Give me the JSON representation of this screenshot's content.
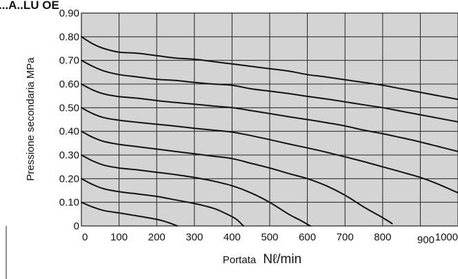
{
  "chart_data": {
    "type": "line",
    "title": "...A..LU OE",
    "ylabel": "Pressione secondaria  MPa",
    "xlabel": "Portata",
    "xunit": "Nℓ/min",
    "xlim": [
      0,
      1000
    ],
    "ylim": [
      0,
      0.9
    ],
    "grid": true,
    "x_ticks": [
      {
        "value": 0,
        "label": "0"
      },
      {
        "value": 100,
        "label": "100"
      },
      {
        "value": 200,
        "label": "200"
      },
      {
        "value": 300,
        "label": "300"
      },
      {
        "value": 400,
        "label": "400"
      },
      {
        "value": 500,
        "label": "500"
      },
      {
        "value": 600,
        "label": "600"
      },
      {
        "value": 700,
        "label": "700"
      },
      {
        "value": 800,
        "label": "800"
      },
      {
        "value": 900,
        "label": "900"
      },
      {
        "value": 1000,
        "label": "1000"
      }
    ],
    "y_ticks": [
      {
        "value": 0,
        "label": "0"
      },
      {
        "value": 0.1,
        "label": "0.10"
      },
      {
        "value": 0.2,
        "label": "0.20"
      },
      {
        "value": 0.3,
        "label": "0.30"
      },
      {
        "value": 0.4,
        "label": "0.40"
      },
      {
        "value": 0.5,
        "label": "0.50"
      },
      {
        "value": 0.6,
        "label": "0.60"
      },
      {
        "value": 0.7,
        "label": "0.70"
      },
      {
        "value": 0.8,
        "label": "0.80"
      },
      {
        "value": 0.9,
        "label": "0.90"
      }
    ],
    "series": [
      {
        "x": [
          0,
          30,
          60,
          100,
          150,
          200,
          250,
          300,
          350,
          400,
          450,
          500,
          550,
          600,
          650,
          700,
          750,
          800,
          850,
          900,
          950,
          1000
        ],
        "y": [
          0.8,
          0.77,
          0.75,
          0.735,
          0.73,
          0.72,
          0.71,
          0.705,
          0.695,
          0.685,
          0.675,
          0.665,
          0.655,
          0.64,
          0.63,
          0.618,
          0.607,
          0.595,
          0.58,
          0.565,
          0.55,
          0.535
        ]
      },
      {
        "x": [
          0,
          30,
          60,
          100,
          150,
          200,
          250,
          300,
          350,
          400,
          450,
          500,
          550,
          600,
          650,
          700,
          750,
          800,
          850,
          900,
          950,
          1000
        ],
        "y": [
          0.7,
          0.675,
          0.655,
          0.64,
          0.63,
          0.62,
          0.615,
          0.607,
          0.6,
          0.595,
          0.58,
          0.57,
          0.56,
          0.548,
          0.537,
          0.525,
          0.512,
          0.5,
          0.485,
          0.47,
          0.455,
          0.44
        ]
      },
      {
        "x": [
          0,
          30,
          60,
          100,
          150,
          200,
          250,
          300,
          350,
          400,
          450,
          500,
          550,
          600,
          650,
          700,
          750,
          800,
          850,
          900,
          950,
          1000
        ],
        "y": [
          0.6,
          0.575,
          0.558,
          0.547,
          0.54,
          0.53,
          0.522,
          0.515,
          0.507,
          0.5,
          0.488,
          0.475,
          0.462,
          0.45,
          0.437,
          0.423,
          0.405,
          0.39,
          0.373,
          0.355,
          0.335,
          0.315
        ]
      },
      {
        "x": [
          0,
          30,
          60,
          100,
          150,
          200,
          250,
          300,
          350,
          400,
          450,
          500,
          550,
          600,
          650,
          700,
          750,
          800,
          850,
          900,
          950,
          1000
        ],
        "y": [
          0.5,
          0.475,
          0.458,
          0.447,
          0.438,
          0.43,
          0.422,
          0.413,
          0.405,
          0.397,
          0.382,
          0.365,
          0.347,
          0.33,
          0.312,
          0.292,
          0.272,
          0.25,
          0.228,
          0.205,
          0.175,
          0.14
        ]
      },
      {
        "x": [
          0,
          30,
          60,
          100,
          150,
          200,
          250,
          300,
          350,
          400,
          450,
          500,
          550,
          600,
          650,
          700,
          750,
          800,
          825
        ],
        "y": [
          0.4,
          0.375,
          0.357,
          0.345,
          0.335,
          0.325,
          0.315,
          0.305,
          0.295,
          0.285,
          0.265,
          0.245,
          0.222,
          0.2,
          0.17,
          0.13,
          0.08,
          0.035,
          0.01
        ]
      },
      {
        "x": [
          0,
          30,
          60,
          100,
          150,
          200,
          250,
          300,
          350,
          400,
          450,
          500,
          550,
          580,
          608
        ],
        "y": [
          0.3,
          0.275,
          0.257,
          0.245,
          0.237,
          0.227,
          0.217,
          0.205,
          0.19,
          0.17,
          0.14,
          0.1,
          0.05,
          0.025,
          0.0
        ]
      },
      {
        "x": [
          0,
          30,
          60,
          100,
          150,
          200,
          250,
          300,
          350,
          380,
          410,
          430
        ],
        "y": [
          0.2,
          0.175,
          0.157,
          0.145,
          0.135,
          0.125,
          0.11,
          0.095,
          0.075,
          0.055,
          0.03,
          0.0
        ]
      },
      {
        "x": [
          0,
          30,
          60,
          100,
          150,
          200,
          230,
          255
        ],
        "y": [
          0.1,
          0.08,
          0.065,
          0.055,
          0.042,
          0.028,
          0.015,
          0.0
        ]
      }
    ]
  }
}
